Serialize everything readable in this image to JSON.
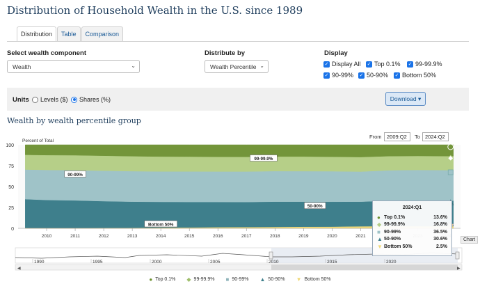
{
  "page": {
    "title": "Distribution of Household Wealth in the U.S. since 1989"
  },
  "tabs": [
    {
      "label": "Distribution",
      "active": true
    },
    {
      "label": "Table",
      "active": false
    },
    {
      "label": "Comparison",
      "active": false
    }
  ],
  "controls": {
    "wealth_component_label": "Select wealth component",
    "wealth_component_value": "Wealth",
    "distribute_by_label": "Distribute by",
    "distribute_by_value": "Wealth Percentile",
    "display_label": "Display",
    "display_options": [
      {
        "label": "Display All",
        "checked": true
      },
      {
        "label": "Top 0.1%",
        "checked": true
      },
      {
        "label": "99-99.9%",
        "checked": true
      },
      {
        "label": "90-99%",
        "checked": true
      },
      {
        "label": "50-90%",
        "checked": true
      },
      {
        "label": "Bottom 50%",
        "checked": true
      }
    ]
  },
  "units": {
    "label": "Units",
    "options": [
      {
        "label": "Levels ($)",
        "selected": false
      },
      {
        "label": "Shares (%)",
        "selected": true
      }
    ],
    "download_label": "Download ▾"
  },
  "chart_title": "Wealth by wealth percentile group",
  "range": {
    "from_label": "From",
    "from_value": "2009:Q2",
    "to_label": "To",
    "to_value": "2024:Q2"
  },
  "chart_badge": "Chart",
  "tooltip": {
    "title": "2024:Q1",
    "rows": [
      {
        "name": "Top 0.1%",
        "value": "13.6%",
        "symbol": "●",
        "color": "#6b8f2e"
      },
      {
        "name": "99-99.9%",
        "value": "16.8%",
        "symbol": "◆",
        "color": "#b4cc87"
      },
      {
        "name": "90-99%",
        "value": "36.5%",
        "symbol": "■",
        "color": "#9fc3c8"
      },
      {
        "name": "50-90%",
        "value": "30.6%",
        "symbol": "▲",
        "color": "#3e7f8c"
      },
      {
        "name": "Bottom 50%",
        "value": "2.5%",
        "symbol": "▼",
        "color": "#f0d878"
      }
    ]
  },
  "legend": [
    {
      "name": "Top 0.1%",
      "symbol": "●",
      "color": "#6b8f2e"
    },
    {
      "name": "99-99.9%",
      "symbol": "◆",
      "color": "#9fbe6b"
    },
    {
      "name": "90-99%",
      "symbol": "■",
      "color": "#8fb4ba"
    },
    {
      "name": "50-90%",
      "symbol": "▲",
      "color": "#3e7f8c"
    },
    {
      "name": "Bottom 50%",
      "symbol": "▼",
      "color": "#f0d878"
    }
  ],
  "navigator": {
    "year_labels": [
      "1990",
      "1995",
      "2000",
      "2005",
      "2010",
      "2015",
      "2020"
    ]
  },
  "chart_data": {
    "type": "area",
    "stacked": true,
    "ylabel": "Percent of Total",
    "ylim": [
      0,
      100
    ],
    "yticks": [
      0,
      25,
      50,
      75,
      100
    ],
    "x_tick_labels": [
      "2010",
      "2011",
      "2012",
      "2013",
      "2014",
      "2015",
      "2016",
      "2017",
      "2018",
      "2019",
      "2020",
      "2021",
      "2022",
      "2023",
      "2024"
    ],
    "x": [
      2009.25,
      2010,
      2011,
      2012,
      2013,
      2014,
      2015,
      2016,
      2017,
      2018,
      2019,
      2020,
      2021,
      2022,
      2023,
      2024.25
    ],
    "series": [
      {
        "name": "Bottom 50%",
        "color": "#f3dc7a",
        "values": [
          0.4,
          0.4,
          0.4,
          0.5,
          0.7,
          0.9,
          1.1,
          1.3,
          1.5,
          1.7,
          1.9,
          2.0,
          2.4,
          2.6,
          2.6,
          2.5
        ]
      },
      {
        "name": "50-90%",
        "color": "#3e7f8c",
        "values": [
          34.5,
          33.5,
          33.0,
          32.0,
          31.2,
          30.8,
          30.5,
          30.3,
          30.0,
          30.2,
          30.0,
          29.8,
          29.5,
          30.5,
          30.8,
          30.6
        ]
      },
      {
        "name": "90-99%",
        "color": "#9fc3c8",
        "values": [
          35.5,
          36.0,
          36.2,
          36.5,
          36.5,
          36.4,
          36.5,
          36.4,
          36.5,
          36.6,
          36.5,
          36.5,
          36.0,
          36.4,
          36.5,
          36.5
        ]
      },
      {
        "name": "99-99.9%",
        "color": "#b6cf88",
        "values": [
          17.6,
          17.8,
          17.9,
          17.9,
          17.9,
          17.8,
          17.7,
          17.6,
          17.5,
          17.4,
          17.5,
          17.4,
          17.4,
          16.9,
          16.8,
          16.8
        ]
      },
      {
        "name": "Top 0.1%",
        "color": "#73953a",
        "values": [
          12.0,
          12.3,
          12.5,
          13.1,
          13.7,
          14.1,
          14.2,
          14.4,
          14.5,
          14.1,
          14.1,
          14.3,
          14.7,
          13.6,
          13.3,
          13.6
        ]
      }
    ],
    "annotations": [
      {
        "text": "99-99.9%",
        "x": 2017.6,
        "series": "99-99.9%"
      },
      {
        "text": "90-99%",
        "x": 2011.0,
        "series": "90-99%"
      },
      {
        "text": "50-90%",
        "x": 2019.4,
        "series": "50-90%"
      },
      {
        "text": "Bottom 50%",
        "x": 2014.0,
        "series": "Bottom 50%"
      }
    ]
  }
}
